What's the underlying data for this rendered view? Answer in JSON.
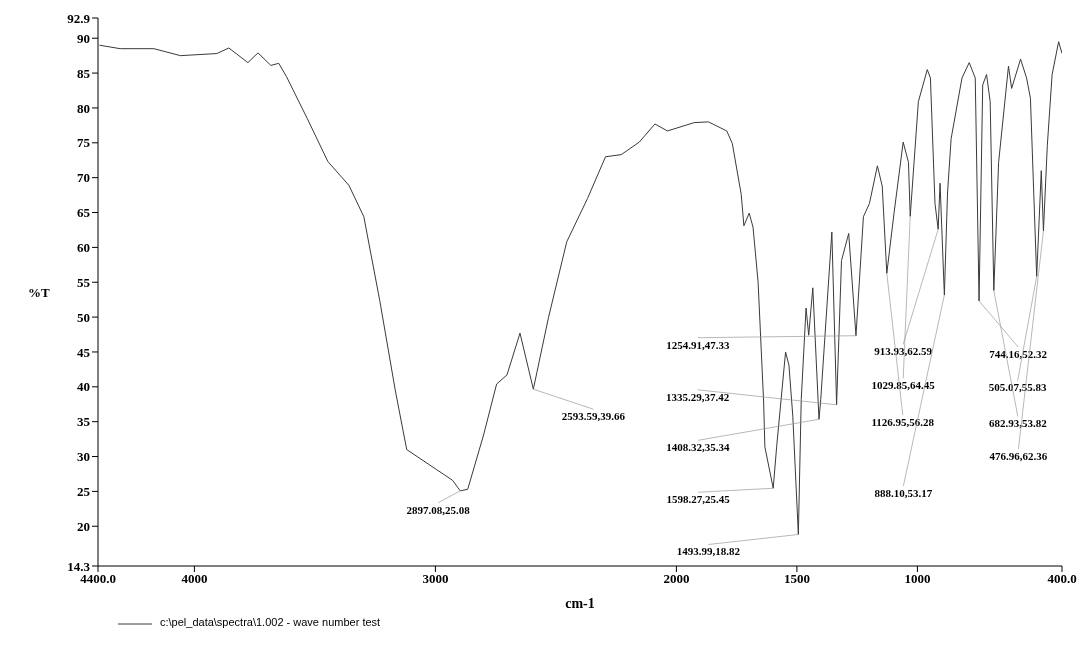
{
  "chart_data": {
    "type": "line",
    "xlabel": "cm-1",
    "ylabel": "%T",
    "xlim": [
      4400,
      400
    ],
    "ylim": [
      14.3,
      92.9
    ],
    "xticks": [
      {
        "value": 4400,
        "label": "4400.0"
      },
      4000,
      3000,
      2000,
      1500,
      1000,
      {
        "value": 400,
        "label": "400.0"
      }
    ],
    "yticks": [
      14.3,
      20,
      25,
      30,
      35,
      40,
      45,
      50,
      55,
      60,
      65,
      70,
      75,
      80,
      85,
      90,
      92.9
    ],
    "legend": "bottom left",
    "marker": "none",
    "line_style": "solid",
    "series": [
      {
        "name": "c:\\pel_data\\spectra\\1.002 - wave number test",
        "color": "#3a3a3a",
        "x": [
          4394,
          4308,
          4168,
          4058,
          3907,
          3857,
          3778,
          3736,
          3683,
          3650,
          3618,
          3532,
          3446,
          3359,
          3297,
          3231,
          3166,
          3119,
          2994,
          2929,
          2897.08,
          2866,
          2800,
          2746,
          2703,
          2649,
          2593.59,
          2531,
          2455,
          2369,
          2294,
          2229,
          2154,
          2089,
          2037,
          1926,
          1867,
          1791,
          1768,
          1731,
          1720,
          1698,
          1682,
          1661,
          1638,
          1633,
          1598.27,
          1584,
          1547,
          1533,
          1517,
          1493.99,
          1482,
          1462,
          1451,
          1434,
          1408.32,
          1401,
          1355,
          1335.29,
          1315,
          1285,
          1254.91,
          1224,
          1199,
          1166,
          1146,
          1126.95,
          1097,
          1059,
          1037,
          1029.85,
          996,
          959,
          946,
          927,
          913.93,
          906,
          888.1,
          875,
          860,
          815,
          785,
          760,
          744.16,
          729,
          713,
          698,
          682.93,
          663,
          622,
          609,
          572,
          547,
          531,
          505.07,
          486,
          476.96,
          461,
          441,
          414,
          400
        ],
        "values": [
          89.0,
          88.5,
          88.5,
          87.5,
          87.8,
          88.6,
          86.5,
          87.9,
          86.1,
          86.4,
          84.5,
          78.5,
          72.3,
          68.9,
          64.4,
          52.4,
          39.4,
          31.0,
          28.1,
          26.6,
          25.08,
          25.3,
          33.1,
          40.4,
          41.7,
          47.7,
          39.66,
          49.9,
          60.8,
          67.0,
          73.0,
          73.3,
          75.1,
          77.7,
          76.7,
          77.9,
          78.0,
          76.7,
          74.9,
          67.6,
          63.1,
          64.9,
          62.9,
          55.0,
          37.8,
          31.4,
          25.45,
          31.4,
          45.0,
          43.1,
          35.8,
          18.82,
          38.2,
          51.3,
          47.4,
          54.2,
          35.34,
          38.2,
          62.2,
          37.42,
          58.1,
          62.0,
          47.33,
          64.4,
          66.3,
          71.7,
          68.8,
          56.28,
          64.9,
          75.1,
          72.2,
          64.45,
          80.9,
          85.5,
          84.3,
          66.3,
          62.59,
          69.2,
          53.17,
          67.8,
          75.6,
          84.3,
          86.5,
          84.3,
          52.32,
          83.3,
          84.8,
          80.9,
          53.82,
          72.2,
          86.0,
          82.8,
          87.0,
          84.3,
          81.4,
          55.83,
          71.0,
          62.36,
          74.6,
          84.8,
          89.5,
          87.8
        ]
      }
    ],
    "annotations": [
      {
        "text": "2897.08,25.08",
        "x": 2897.08,
        "y": 25.08
      },
      {
        "text": "2593.59,39.66",
        "x": 2593.59,
        "y": 39.66
      },
      {
        "text": "1254.91,47.33",
        "x": 1254.91,
        "y": 47.33
      },
      {
        "text": "1335.29,37.42",
        "x": 1335.29,
        "y": 37.42
      },
      {
        "text": "1408.32,35.34",
        "x": 1408.32,
        "y": 35.34
      },
      {
        "text": "1598.27,25.45",
        "x": 1598.27,
        "y": 25.45
      },
      {
        "text": "1493.99,18.82",
        "x": 1493.99,
        "y": 18.82
      },
      {
        "text": "913.93,62.59",
        "x": 913.93,
        "y": 62.59
      },
      {
        "text": "744.16,52.32",
        "x": 744.16,
        "y": 52.32
      },
      {
        "text": "1029.85,64.45",
        "x": 1029.85,
        "y": 64.45
      },
      {
        "text": "505.07,55.83",
        "x": 505.07,
        "y": 55.83
      },
      {
        "text": "1126.95,56.28",
        "x": 1126.95,
        "y": 56.28
      },
      {
        "text": "682.93,53.82",
        "x": 682.93,
        "y": 53.82
      },
      {
        "text": "476.96,62.36",
        "x": 476.96,
        "y": 62.36
      },
      {
        "text": "888.10,53.17",
        "x": 888.1,
        "y": 53.17
      }
    ]
  }
}
